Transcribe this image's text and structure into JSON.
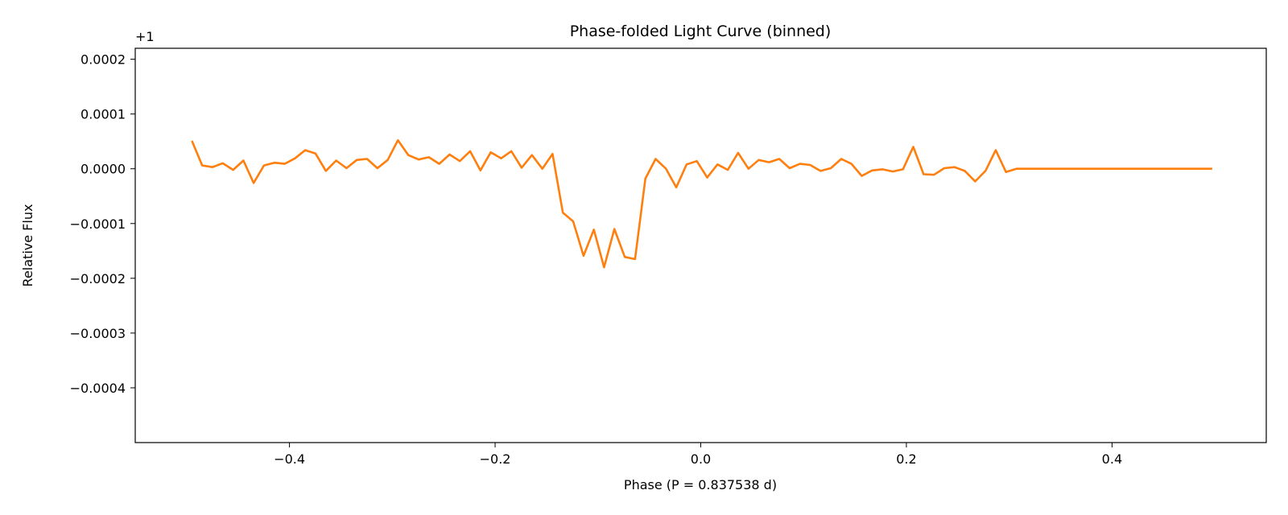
{
  "chart_data": {
    "type": "line",
    "title": "Phase-folded Light Curve (binned)",
    "xlabel": "Phase (P = 0.837538 d)",
    "ylabel": "Relative Flux",
    "y_offset_label": "+1",
    "xlim": [
      -0.55,
      0.55
    ],
    "ylim": [
      -0.0005,
      0.00022
    ],
    "x_ticks": [
      -0.4,
      -0.2,
      0.0,
      0.2,
      0.4
    ],
    "x_tick_labels": [
      "−0.4",
      "−0.2",
      "0.0",
      "0.2",
      "0.4"
    ],
    "y_ticks": [
      0.0002,
      0.0001,
      0.0,
      -0.0001,
      -0.0002,
      -0.0003,
      -0.0004
    ],
    "y_tick_labels": [
      "0.0002",
      "0.0001",
      "0.0000",
      "−0.0001",
      "−0.0002",
      "−0.0003",
      "−0.0004"
    ],
    "grid": false,
    "colors": {
      "scatter": "#1f77b4",
      "binned": "#ff7f0e"
    },
    "series": [
      {
        "type": "line",
        "x": [
          -0.4949,
          -0.4849,
          -0.4749,
          -0.4649,
          -0.4548,
          -0.4448,
          -0.4348,
          -0.4248,
          -0.4147,
          -0.4047,
          -0.3947,
          -0.3847,
          -0.3747,
          -0.3646,
          -0.3546,
          -0.3446,
          -0.3346,
          -0.3245,
          -0.3145,
          -0.3045,
          -0.2945,
          -0.2844,
          -0.2744,
          -0.2644,
          -0.2544,
          -0.2443,
          -0.2343,
          -0.2243,
          -0.2143,
          -0.2043,
          -0.1942,
          -0.1842,
          -0.1742,
          -0.1642,
          -0.1541,
          -0.1441,
          -0.1341,
          -0.1241,
          -0.114,
          -0.104,
          -0.094,
          -0.084,
          -0.0739,
          -0.0639,
          -0.0539,
          -0.0439,
          -0.0338,
          -0.0238,
          -0.0138,
          -0.0038,
          0.0063,
          0.0163,
          0.0263,
          0.0363,
          0.0464,
          0.0564,
          0.0664,
          0.0764,
          0.0864,
          0.0965,
          0.1065,
          0.1165,
          0.1265,
          0.1366,
          0.1466,
          0.1566,
          0.1666,
          0.1767,
          0.1867,
          0.1967,
          0.2067,
          0.2167,
          0.2268,
          0.2368,
          0.2468,
          0.2568,
          0.2669,
          0.2769,
          0.2869,
          0.2969,
          0.307,
          0.317,
          0.327,
          0.337,
          0.3471,
          0.3571,
          0.3671,
          0.3771,
          0.3871,
          0.3972,
          0.4072,
          0.4172,
          0.4272,
          0.4373,
          0.4473,
          0.4573,
          0.4673,
          0.4774,
          0.4874,
          0.4974
        ],
        "y": [
          5.1e-05,
          6e-06,
          3e-06,
          1e-05,
          -2e-06,
          1.5e-05,
          -2.6e-05,
          6e-06,
          1.1e-05,
          9e-06,
          1.9e-05,
          3.4e-05,
          2.8e-05,
          -4e-06,
          1.5e-05,
          1e-06,
          1.6e-05,
          1.8e-05,
          1e-06,
          1.6e-05,
          5.2e-05,
          2.5e-05,
          1.7e-05,
          2.1e-05,
          9e-06,
          2.6e-05,
          1.4e-05,
          3.2e-05,
          -3e-06,
          3e-05,
          1.9e-05,
          3.2e-05,
          2e-06,
          2.5e-05,
          0.0,
          2.7e-05,
          -8e-05,
          -9.6e-05,
          -0.000159,
          -0.000111,
          -0.00018,
          -0.00011,
          -0.000161,
          -0.000165,
          -1.8e-05,
          1.8e-05,
          0.0,
          -3.4e-05,
          8e-06,
          1.4e-05,
          -1.6e-05,
          8e-06,
          -2e-06,
          2.9e-05,
          0.0,
          1.6e-05,
          1.2e-05,
          1.8e-05,
          1e-06,
          9e-06,
          7e-06,
          -4e-06,
          1e-06,
          1.8e-05,
          9e-06,
          -1.3e-05,
          -3e-06,
          -1e-06,
          -5e-06,
          -1e-06,
          4e-05,
          -1e-05,
          -1.1e-05,
          1e-06,
          3e-06,
          -4e-06,
          -2.3e-05,
          -4e-06,
          3.4e-05,
          -6e-06,
          0.0,
          0.0,
          0.0,
          0.0,
          0.0,
          0.0,
          0.0,
          0.0,
          0.0,
          0.0,
          0.0,
          0.0,
          0.0,
          0.0,
          0.0,
          0.0,
          0.0,
          0.0,
          0.0,
          0.0
        ]
      },
      {
        "type": "scatter",
        "point_count": 0
      }
    ]
  }
}
